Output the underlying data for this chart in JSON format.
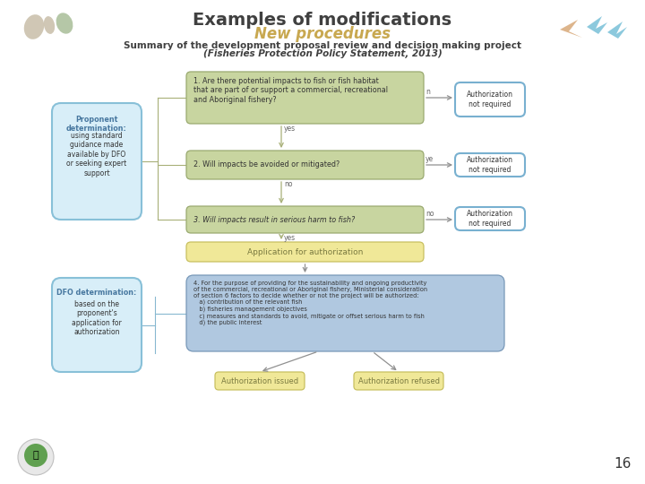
{
  "title": "Examples of modifications",
  "subtitle": "New procedures",
  "subtitle_color": "#C8A850",
  "background_color": "#FFFFFF",
  "title_color": "#404040",
  "body_color": "#404040",
  "page_number": "16",
  "green_box_fill": "#C8D5A0",
  "green_box_edge": "#9AAA70",
  "yellow_box_fill": "#F0E898",
  "yellow_box_edge": "#C8C060",
  "blue_auth_fill": "#C8DFF0",
  "blue_auth_edge": "#78B0D0",
  "blue_q4_fill": "#B0C8E0",
  "blue_q4_edge": "#7898B8",
  "blue_side_fill": "#D8EEF8",
  "blue_side_edge": "#88C0D8",
  "arrow_green": "#A8B078",
  "arrow_grey": "#909090",
  "q1_text": "1. Are there potential impacts to fish or fish habitat\nthat are part of or support a commercial, recreational\nand Aboriginal fishery?",
  "q2_text": "2. Will impacts be avoided or mitigated?",
  "q3_text": "3. Will impacts result in serious harm to fish?",
  "q4_line1": "4. For the purpose of providing for the sustainability and ongoing productivity",
  "q4_line2": "of the commercial, recreational or Aboriginal fishery, Ministerial consideration",
  "q4_line3": "of section 6 factors to decide whether or not the project will be authorized:",
  "q4_line4": "   a) contribution of the relevant fish",
  "q4_line5": "   b) fisheries management objectives",
  "q4_line6": "   c) measures and standards to avoid, mitigate or offset serious harm to fish",
  "q4_line7": "   d) the public interest",
  "auth_req": "Authorization\nnot required",
  "app_auth": "Application for authorization",
  "auth_issued": "Authorization issued",
  "auth_refused": "Authorization refused",
  "proponent_title": "Proponent\ndetermination:",
  "proponent_body": "using standard\nguidance made\navailable by DFO\nor seeking expert\nsupport",
  "dfo_title": "DFO determination:",
  "dfo_body": "based on the\nproponent's\napplication for\nauthorization",
  "text_dark": "#333333",
  "text_olive": "#7A7A40",
  "text_blue_bold": "#4878A0"
}
